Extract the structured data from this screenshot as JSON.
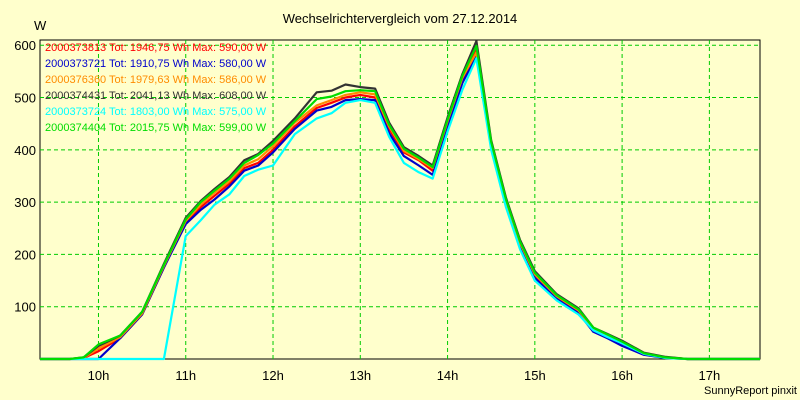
{
  "chart_data": {
    "type": "line",
    "title": "Wechselrichtervergleich vom 27.12.2014",
    "ylabel": "W",
    "xlabel": "",
    "xlim": [
      9.33,
      17.58
    ],
    "ylim": [
      0,
      610
    ],
    "x_ticks": [
      {
        "value": 10,
        "label": "10h"
      },
      {
        "value": 11,
        "label": "11h"
      },
      {
        "value": 12,
        "label": "12h"
      },
      {
        "value": 13,
        "label": "13h"
      },
      {
        "value": 14,
        "label": "14h"
      },
      {
        "value": 15,
        "label": "15h"
      },
      {
        "value": 16,
        "label": "16h"
      },
      {
        "value": 17,
        "label": "17h"
      }
    ],
    "y_ticks": [
      100,
      200,
      300,
      400,
      500,
      600
    ],
    "grid": true,
    "legend_position": "top-left",
    "x": [
      9.33,
      9.67,
      9.83,
      10.0,
      10.25,
      10.5,
      10.75,
      11.0,
      11.17,
      11.33,
      11.5,
      11.67,
      11.83,
      12.0,
      12.25,
      12.5,
      12.67,
      12.83,
      13.0,
      13.17,
      13.33,
      13.5,
      13.67,
      13.83,
      14.0,
      14.17,
      14.33,
      14.5,
      14.67,
      14.83,
      15.0,
      15.25,
      15.5,
      15.67,
      15.83,
      16.0,
      16.25,
      16.5,
      16.75,
      17.0,
      17.25,
      17.58
    ],
    "series": [
      {
        "name": "2000373813 Tot: 1946,75 Wh Max: 590,00 W",
        "color": "#ff0000",
        "values": [
          0,
          0,
          2,
          15,
          40,
          85,
          175,
          262,
          290,
          312,
          335,
          365,
          375,
          400,
          445,
          480,
          490,
          500,
          505,
          500,
          440,
          395,
          380,
          360,
          450,
          535,
          590,
          410,
          300,
          220,
          160,
          118,
          90,
          58,
          45,
          30,
          10,
          3,
          0,
          0,
          0,
          0
        ]
      },
      {
        "name": "2000373721 Tot: 1910,75 Wh Max: 580,00 W",
        "color": "#0000cc",
        "values": [
          0,
          0,
          0,
          0,
          40,
          85,
          175,
          258,
          285,
          305,
          330,
          360,
          370,
          395,
          440,
          475,
          482,
          495,
          497,
          495,
          432,
          388,
          370,
          352,
          445,
          528,
          580,
          405,
          295,
          215,
          155,
          115,
          88,
          52,
          40,
          25,
          8,
          2,
          0,
          0,
          0,
          0
        ]
      },
      {
        "name": "2000376360 Tot: 1979,63 Wh Max: 586,00 W",
        "color": "#ff8c00",
        "values": [
          0,
          0,
          2,
          20,
          42,
          87,
          178,
          264,
          295,
          318,
          340,
          370,
          382,
          407,
          452,
          485,
          495,
          505,
          510,
          506,
          445,
          398,
          382,
          365,
          455,
          538,
          586,
          412,
          302,
          222,
          162,
          120,
          93,
          58,
          45,
          32,
          10,
          3,
          0,
          0,
          0,
          0
        ]
      },
      {
        "name": "2000374431 Tot: 2041,13 Wh Max: 608,00 W",
        "color": "#333333",
        "values": [
          0,
          0,
          3,
          25,
          45,
          90,
          182,
          270,
          302,
          325,
          348,
          380,
          392,
          417,
          460,
          510,
          513,
          525,
          520,
          517,
          452,
          405,
          388,
          370,
          462,
          545,
          608,
          418,
          308,
          228,
          168,
          124,
          97,
          60,
          48,
          35,
          12,
          4,
          0,
          0,
          0,
          0
        ]
      },
      {
        "name": "2000373724 Tot: 1803,00 Wh Max: 575,00 W",
        "color": "#00ffff",
        "values": [
          0,
          0,
          0,
          0,
          0,
          0,
          0,
          235,
          265,
          295,
          315,
          350,
          362,
          370,
          430,
          460,
          470,
          490,
          495,
          490,
          425,
          375,
          357,
          345,
          435,
          515,
          575,
          400,
          290,
          210,
          150,
          112,
          85,
          55,
          42,
          30,
          10,
          2,
          0,
          0,
          0,
          0
        ]
      },
      {
        "name": "2000374404 Tot: 2015,75 Wh Max: 599,00 W",
        "color": "#00dd00",
        "values": [
          0,
          0,
          3,
          28,
          45,
          90,
          180,
          267,
          300,
          322,
          345,
          375,
          390,
          412,
          455,
          497,
          502,
          512,
          514,
          512,
          448,
          402,
          385,
          367,
          458,
          542,
          599,
          415,
          305,
          225,
          165,
          122,
          95,
          60,
          47,
          33,
          11,
          3,
          0,
          0,
          0,
          0
        ]
      }
    ],
    "footer": "SunnyReport pinxit"
  },
  "colors": {
    "background": "#ffffcc",
    "grid": "#00cc00"
  }
}
